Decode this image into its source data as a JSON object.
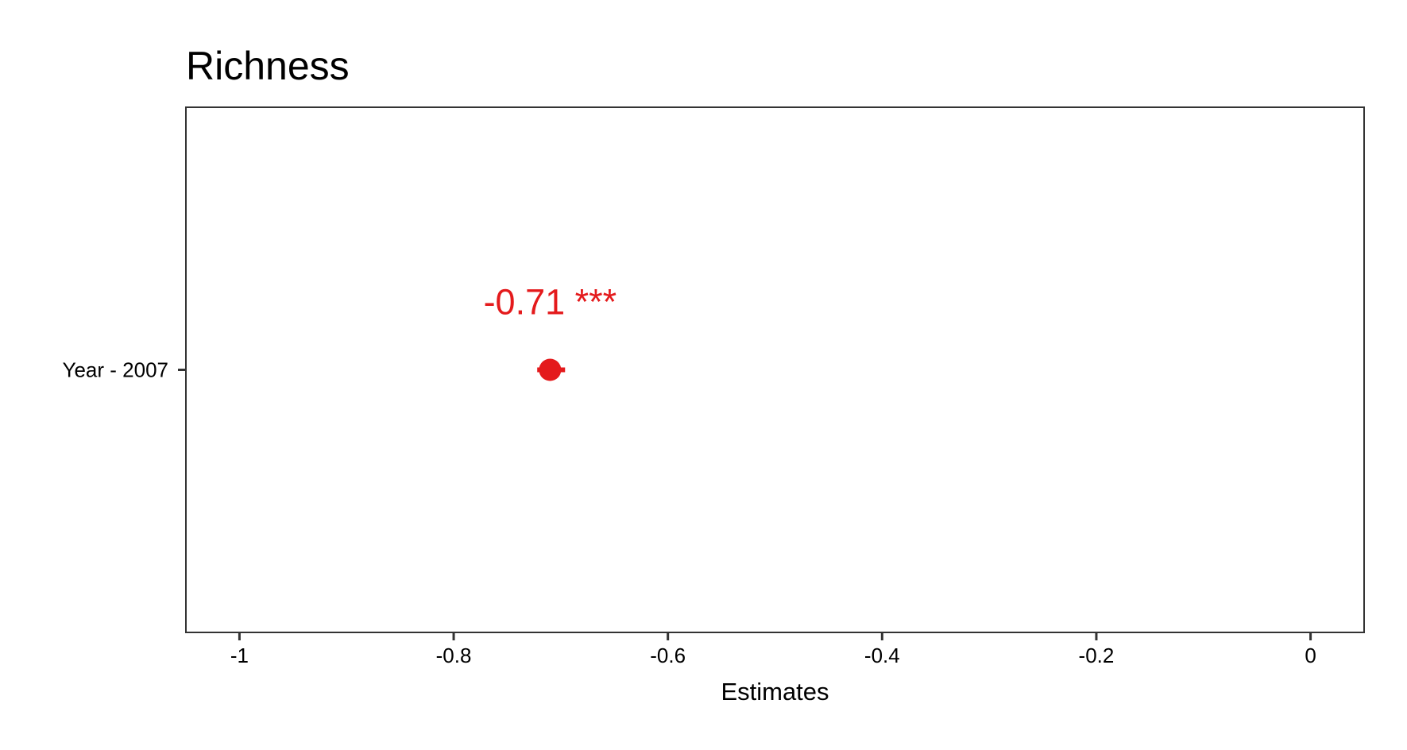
{
  "chart_data": {
    "type": "scatter",
    "title": "Richness",
    "xlabel": "Estimates",
    "ylabel": "",
    "xlim": [
      -1.05,
      0.05
    ],
    "x_ticks": [
      {
        "value": -1,
        "label": "-1"
      },
      {
        "value": -0.8,
        "label": "-0.8"
      },
      {
        "value": -0.6,
        "label": "-0.6"
      },
      {
        "value": -0.4,
        "label": "-0.4"
      },
      {
        "value": -0.2,
        "label": "-0.2"
      },
      {
        "value": 0,
        "label": "0"
      }
    ],
    "categories": [
      "Year - 2007"
    ],
    "points": [
      {
        "category": "Year - 2007",
        "estimate": -0.71,
        "ci_low": -0.722,
        "ci_high": -0.696,
        "label": "-0.71 ***"
      }
    ],
    "grid": false,
    "colors": {
      "point": "#e41a1c",
      "axis": "#333333"
    }
  }
}
